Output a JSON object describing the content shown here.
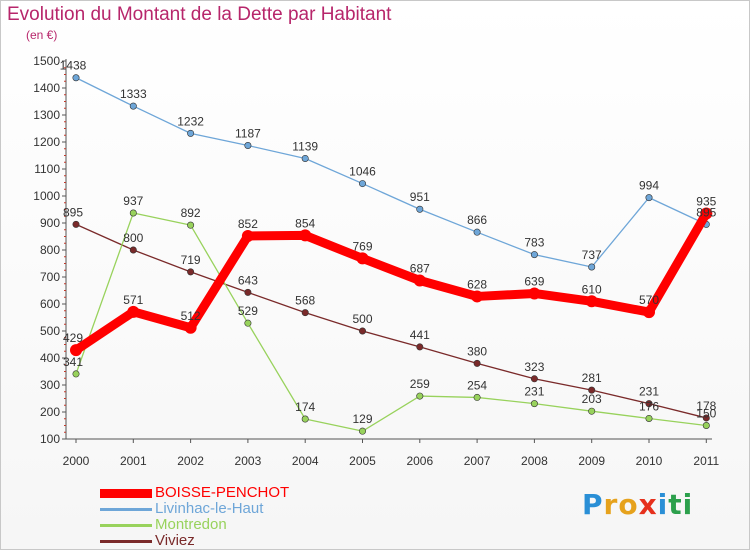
{
  "title": "Evolution du Montant de la Dette par Habitant",
  "subtitle": "(en €)",
  "logo": {
    "letters": [
      "P",
      "r",
      "o",
      "x",
      "i",
      "t",
      "i"
    ],
    "colors": [
      "#2a8fd6",
      "#e6a21c",
      "#e6a21c",
      "#e6301c",
      "#2a8fd6",
      "#2ca04c",
      "#2ca04c"
    ]
  },
  "chart_data": {
    "type": "line",
    "x": [
      "2000",
      "2001",
      "2002",
      "2003",
      "2004",
      "2005",
      "2006",
      "2007",
      "2008",
      "2009",
      "2010",
      "2011"
    ],
    "ylim": [
      100,
      1500
    ],
    "yticks": [
      "100",
      "200",
      "300",
      "400",
      "500",
      "600",
      "700",
      "800",
      "900",
      "1000",
      "1100",
      "1200",
      "1300",
      "1400",
      "1500"
    ],
    "grid": false,
    "legend_position": "bottom-left",
    "series": [
      {
        "name": "BOISSE-PENCHOT",
        "color": "#ff0000",
        "values": [
          429,
          571,
          512,
          852,
          854,
          769,
          687,
          628,
          639,
          610,
          570,
          935
        ],
        "labels": [
          "429",
          "571",
          "512",
          "852",
          "854",
          "769",
          "687",
          "628",
          "639",
          "610",
          "570",
          "935"
        ]
      },
      {
        "name": "Livinhac-le-Haut",
        "color": "#6ea6d8",
        "values": [
          1438,
          1333,
          1232,
          1187,
          1139,
          1046,
          951,
          866,
          783,
          737,
          994,
          895
        ],
        "labels": [
          "1438",
          "1333",
          "1232",
          "1187",
          "1139",
          "1046",
          "951",
          "866",
          "783",
          "737",
          "994",
          "895"
        ]
      },
      {
        "name": "Montredon",
        "color": "#98d25c",
        "values": [
          341,
          937,
          892,
          529,
          174,
          129,
          259,
          254,
          231,
          203,
          176,
          150
        ],
        "labels": [
          "341",
          "937",
          "892",
          "529",
          "174",
          "129",
          "259",
          "254",
          "231",
          "203",
          "176",
          "150"
        ]
      },
      {
        "name": "Viviez",
        "color": "#7a2a2a",
        "values": [
          895,
          800,
          719,
          643,
          568,
          500,
          441,
          380,
          323,
          281,
          231,
          178
        ],
        "labels": [
          "895",
          "800",
          "719",
          "643",
          "568",
          "500",
          "441",
          "380",
          "323",
          "281",
          "231",
          "178"
        ]
      }
    ]
  }
}
